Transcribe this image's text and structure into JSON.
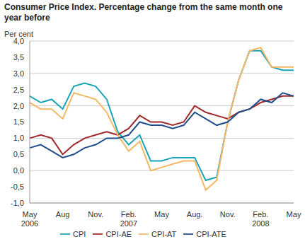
{
  "chart_data": {
    "type": "line",
    "title": "Consumer Price Index. Percentage change from the same month one year before",
    "y_label": "Per cent",
    "categories": [
      "May 2006",
      null,
      null,
      "Aug",
      null,
      null,
      "Nov.",
      null,
      null,
      "Feb. 2007",
      null,
      null,
      "May",
      null,
      null,
      "Aug.",
      null,
      null,
      "Nov.",
      null,
      null,
      "Feb. 2008",
      null,
      null,
      "May"
    ],
    "series": [
      {
        "name": "CPI",
        "color": "#1aa3b8",
        "values": [
          2.3,
          2.1,
          2.2,
          1.9,
          2.6,
          2.7,
          2.6,
          2.2,
          1.2,
          0.8,
          1.1,
          0.3,
          0.3,
          0.4,
          0.4,
          0.4,
          -0.3,
          -0.2,
          1.5,
          2.8,
          3.7,
          3.7,
          3.2,
          3.1,
          3.1
        ]
      },
      {
        "name": "CPI-AE",
        "color": "#a0282a",
        "values": [
          1.0,
          1.1,
          1.0,
          0.5,
          0.8,
          1.0,
          1.1,
          1.2,
          1.1,
          1.3,
          1.7,
          1.5,
          1.5,
          1.4,
          1.5,
          2.0,
          1.8,
          1.7,
          1.6,
          1.8,
          1.9,
          2.1,
          2.2,
          2.3,
          2.3
        ]
      },
      {
        "name": "CPI-AT",
        "color": "#f5b865",
        "values": [
          2.1,
          1.9,
          1.9,
          1.6,
          2.4,
          2.3,
          2.2,
          1.8,
          1.1,
          0.6,
          0.9,
          0.0,
          0.1,
          0.2,
          0.3,
          0.3,
          -0.6,
          -0.3,
          1.5,
          2.8,
          3.7,
          3.8,
          3.2,
          3.2,
          3.2
        ]
      },
      {
        "name": "CPI-ATE",
        "color": "#1f4e8c",
        "values": [
          0.7,
          0.8,
          0.6,
          0.4,
          0.5,
          0.7,
          0.8,
          1.0,
          1.0,
          1.1,
          1.5,
          1.4,
          1.4,
          1.3,
          1.4,
          1.8,
          1.6,
          1.4,
          1.5,
          1.8,
          1.9,
          2.2,
          2.1,
          2.4,
          2.3
        ]
      }
    ],
    "ylim": [
      -1.0,
      4.0
    ],
    "yticks": [
      {
        "value": -1.0,
        "label": "-1,0"
      },
      {
        "value": -0.5,
        "label": "-0,5"
      },
      {
        "value": 0.0,
        "label": "0,0"
      },
      {
        "value": 0.5,
        "label": "0,5"
      },
      {
        "value": 1.0,
        "label": "1,0"
      },
      {
        "value": 1.5,
        "label": "1,5"
      },
      {
        "value": 2.0,
        "label": "2,0"
      },
      {
        "value": 2.5,
        "label": "2,5"
      },
      {
        "value": 3.0,
        "label": "3,0"
      },
      {
        "value": 3.5,
        "label": "3,5"
      },
      {
        "value": 4.0,
        "label": "4,0"
      }
    ],
    "grid": true,
    "legend": "bottom"
  }
}
